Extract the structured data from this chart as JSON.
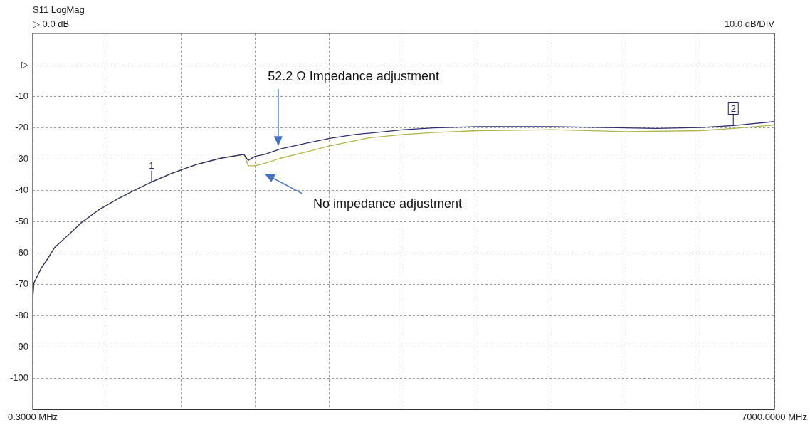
{
  "chart_data": {
    "type": "line",
    "title": "S11 LogMag",
    "subtitle": "▷ 0.0 dB",
    "annotations": [
      "10.0 dB/DIV",
      "52.2 Ω Impedance adjustment",
      "No impedance adjustment",
      {
        "text": "1",
        "x": 1122,
        "y": -37.4
      },
      {
        "text": "2",
        "x": 6612,
        "y": -19.4
      }
    ],
    "xlim": [
      0.3,
      7000
    ],
    "xticks": [
      {
        "value": 0.3,
        "label": "0.3000 MHz"
      },
      {
        "value": 700.27,
        "label": null
      },
      {
        "value": 1400.24,
        "label": null
      },
      {
        "value": 2100.21,
        "label": null
      },
      {
        "value": 2800.18,
        "label": null
      },
      {
        "value": 3500.15,
        "label": null
      },
      {
        "value": 4200.12,
        "label": null
      },
      {
        "value": 4900.09,
        "label": null
      },
      {
        "value": 5600.06,
        "label": null
      },
      {
        "value": 6300.03,
        "label": null
      },
      {
        "value": 7000,
        "label": "7000.0000 MHz"
      }
    ],
    "ylim": [
      -110,
      10
    ],
    "yticks": [
      -100,
      -90,
      -80,
      -70,
      -60,
      -50,
      -40,
      -30,
      -20,
      -10,
      {
        "value": 0,
        "label": "▷"
      }
    ],
    "grid": true,
    "legend": false,
    "marker": "none",
    "line_style": "solid",
    "series": [
      {
        "color": "#2e3170",
        "x": [
          0.3,
          11.5,
          35,
          81,
          138,
          207,
          323,
          461,
          622,
          807,
          968,
          1122,
          1314,
          1544,
          1775,
          1994,
          2033,
          2098,
          2190,
          2340,
          2582,
          2812,
          3043,
          3173,
          3500,
          3787,
          4200,
          4900,
          5600,
          5875,
          6300,
          6612,
          7000
        ],
        "values": [
          -74.4,
          -69.6,
          -68.0,
          -64.8,
          -62.0,
          -58.3,
          -54.7,
          -50.3,
          -46.3,
          -42.7,
          -39.9,
          -37.4,
          -34.6,
          -31.8,
          -29.8,
          -28.6,
          -30.5,
          -29.2,
          -28.6,
          -26.8,
          -25.0,
          -23.4,
          -22.2,
          -21.8,
          -20.7,
          -20.1,
          -19.7,
          -19.7,
          -20.1,
          -20.3,
          -20.0,
          -19.4,
          -18.1
        ]
      },
      {
        "color": "#b3b54a",
        "x": [
          0.3,
          11.5,
          35,
          81,
          138,
          207,
          323,
          461,
          622,
          807,
          968,
          1122,
          1314,
          1544,
          1775,
          1994,
          2033,
          2098,
          2190,
          2340,
          2582,
          2812,
          3043,
          3173,
          3500,
          3787,
          4200,
          4900,
          5600,
          6300,
          6612,
          7000
        ],
        "values": [
          -74.4,
          -69.6,
          -68.0,
          -64.8,
          -62.0,
          -58.3,
          -54.7,
          -50.3,
          -46.3,
          -42.7,
          -39.9,
          -37.4,
          -34.6,
          -31.8,
          -29.8,
          -28.6,
          -32.2,
          -32.2,
          -31.4,
          -29.8,
          -27.8,
          -25.8,
          -24.2,
          -23.3,
          -22.2,
          -21.6,
          -21.0,
          -20.7,
          -21.3,
          -21.0,
          -20.3,
          -19.2
        ]
      }
    ]
  }
}
